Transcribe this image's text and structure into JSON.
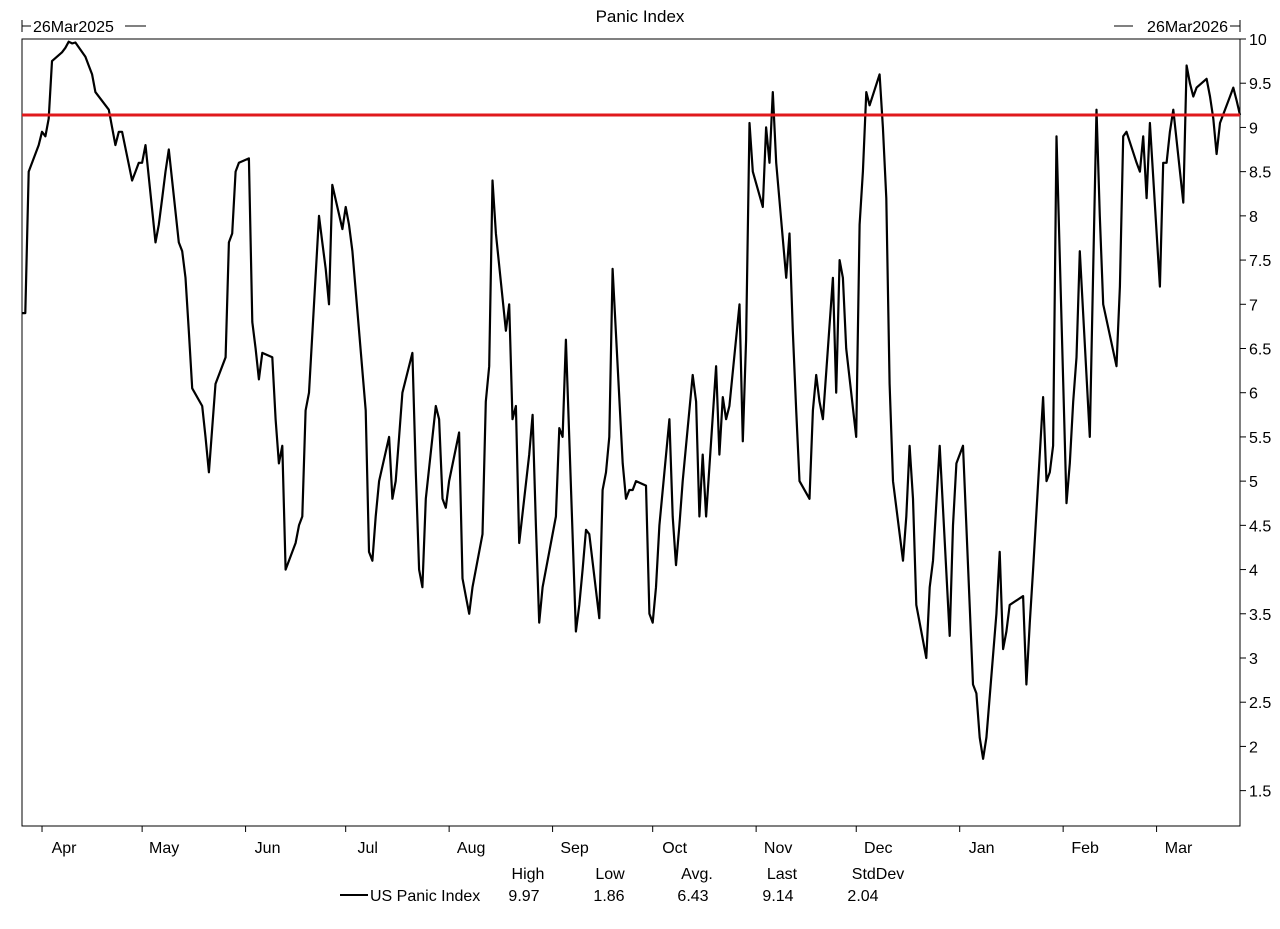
{
  "chart_data": {
    "type": "line",
    "title": "Panic Index",
    "start_label": "26Mar2025",
    "end_label": "26Mar2026",
    "x_range": [
      "2025-03-26",
      "2026-03-26"
    ],
    "ylim": [
      1.1,
      10
    ],
    "y_ticks": [
      10,
      9.5,
      9,
      8.5,
      8,
      7.5,
      7,
      6.5,
      6,
      5.5,
      5,
      4.5,
      4,
      3.5,
      3,
      2.5,
      2,
      1.5
    ],
    "x_ticks": [
      {
        "label": "Apr",
        "date": "2025-04-01"
      },
      {
        "label": "May",
        "date": "2025-05-01"
      },
      {
        "label": "Jun",
        "date": "2025-06-01"
      },
      {
        "label": "Jul",
        "date": "2025-07-01"
      },
      {
        "label": "Aug",
        "date": "2025-08-01"
      },
      {
        "label": "Sep",
        "date": "2025-09-01"
      },
      {
        "label": "Oct",
        "date": "2025-10-01"
      },
      {
        "label": "Nov",
        "date": "2025-11-01"
      },
      {
        "label": "Dec",
        "date": "2025-12-01"
      },
      {
        "label": "Jan",
        "date": "2026-01-01"
      },
      {
        "label": "Feb",
        "date": "2026-02-01"
      },
      {
        "label": "Mar",
        "date": "2026-03-01"
      }
    ],
    "reference_line": {
      "value": 9.14,
      "color": "#e0191c"
    },
    "series": [
      {
        "name": "US Panic Index",
        "color": "#000000",
        "points": [
          [
            "2025-03-26",
            6.9
          ],
          [
            "2025-03-27",
            6.9
          ],
          [
            "2025-03-28",
            8.5
          ],
          [
            "2025-03-31",
            8.8
          ],
          [
            "2025-04-01",
            8.95
          ],
          [
            "2025-04-02",
            8.9
          ],
          [
            "2025-04-03",
            9.1
          ],
          [
            "2025-04-04",
            9.75
          ],
          [
            "2025-04-07",
            9.85
          ],
          [
            "2025-04-08",
            9.9
          ],
          [
            "2025-04-09",
            9.97
          ],
          [
            "2025-04-10",
            9.95
          ],
          [
            "2025-04-11",
            9.96
          ],
          [
            "2025-04-14",
            9.8
          ],
          [
            "2025-04-15",
            9.7
          ],
          [
            "2025-04-16",
            9.6
          ],
          [
            "2025-04-17",
            9.4
          ],
          [
            "2025-04-21",
            9.2
          ],
          [
            "2025-04-22",
            9.0
          ],
          [
            "2025-04-23",
            8.8
          ],
          [
            "2025-04-24",
            8.95
          ],
          [
            "2025-04-25",
            8.95
          ],
          [
            "2025-04-28",
            8.4
          ],
          [
            "2025-04-29",
            8.5
          ],
          [
            "2025-04-30",
            8.6
          ],
          [
            "2025-05-01",
            8.6
          ],
          [
            "2025-05-02",
            8.8
          ],
          [
            "2025-05-05",
            7.7
          ],
          [
            "2025-05-06",
            7.9
          ],
          [
            "2025-05-07",
            8.2
          ],
          [
            "2025-05-08",
            8.5
          ],
          [
            "2025-05-09",
            8.75
          ],
          [
            "2025-05-12",
            7.7
          ],
          [
            "2025-05-13",
            7.6
          ],
          [
            "2025-05-14",
            7.3
          ],
          [
            "2025-05-15",
            6.7
          ],
          [
            "2025-05-16",
            6.05
          ],
          [
            "2025-05-19",
            5.85
          ],
          [
            "2025-05-20",
            5.5
          ],
          [
            "2025-05-21",
            5.1
          ],
          [
            "2025-05-22",
            5.6
          ],
          [
            "2025-05-23",
            6.1
          ],
          [
            "2025-05-26",
            6.4
          ],
          [
            "2025-05-27",
            7.7
          ],
          [
            "2025-05-28",
            7.8
          ],
          [
            "2025-05-29",
            8.5
          ],
          [
            "2025-05-30",
            8.6
          ],
          [
            "2025-06-02",
            8.65
          ],
          [
            "2025-06-03",
            6.8
          ],
          [
            "2025-06-04",
            6.5
          ],
          [
            "2025-06-05",
            6.15
          ],
          [
            "2025-06-06",
            6.45
          ],
          [
            "2025-06-09",
            6.4
          ],
          [
            "2025-06-10",
            5.7
          ],
          [
            "2025-06-11",
            5.2
          ],
          [
            "2025-06-12",
            5.4
          ],
          [
            "2025-06-13",
            4.0
          ],
          [
            "2025-06-16",
            4.3
          ],
          [
            "2025-06-17",
            4.5
          ],
          [
            "2025-06-18",
            4.6
          ],
          [
            "2025-06-19",
            5.8
          ],
          [
            "2025-06-20",
            6.0
          ],
          [
            "2025-06-23",
            8.0
          ],
          [
            "2025-06-24",
            7.7
          ],
          [
            "2025-06-25",
            7.4
          ],
          [
            "2025-06-26",
            7.0
          ],
          [
            "2025-06-27",
            8.35
          ],
          [
            "2025-06-30",
            7.85
          ],
          [
            "2025-07-01",
            8.1
          ],
          [
            "2025-07-02",
            7.9
          ],
          [
            "2025-07-03",
            7.6
          ],
          [
            "2025-07-07",
            5.8
          ],
          [
            "2025-07-08",
            4.2
          ],
          [
            "2025-07-09",
            4.1
          ],
          [
            "2025-07-10",
            4.6
          ],
          [
            "2025-07-11",
            5.0
          ],
          [
            "2025-07-14",
            5.5
          ],
          [
            "2025-07-15",
            4.8
          ],
          [
            "2025-07-16",
            5.0
          ],
          [
            "2025-07-17",
            5.5
          ],
          [
            "2025-07-18",
            6.0
          ],
          [
            "2025-07-21",
            6.45
          ],
          [
            "2025-07-22",
            5.1
          ],
          [
            "2025-07-23",
            4.0
          ],
          [
            "2025-07-24",
            3.8
          ],
          [
            "2025-07-25",
            4.8
          ],
          [
            "2025-07-28",
            5.85
          ],
          [
            "2025-07-29",
            5.7
          ],
          [
            "2025-07-30",
            4.8
          ],
          [
            "2025-07-31",
            4.7
          ],
          [
            "2025-08-01",
            5.0
          ],
          [
            "2025-08-04",
            5.55
          ],
          [
            "2025-08-05",
            3.9
          ],
          [
            "2025-08-06",
            3.7
          ],
          [
            "2025-08-07",
            3.5
          ],
          [
            "2025-08-08",
            3.8
          ],
          [
            "2025-08-11",
            4.4
          ],
          [
            "2025-08-12",
            5.9
          ],
          [
            "2025-08-13",
            6.3
          ],
          [
            "2025-08-14",
            8.4
          ],
          [
            "2025-08-15",
            7.8
          ],
          [
            "2025-08-18",
            6.7
          ],
          [
            "2025-08-19",
            7.0
          ],
          [
            "2025-08-20",
            5.7
          ],
          [
            "2025-08-21",
            5.85
          ],
          [
            "2025-08-22",
            4.3
          ],
          [
            "2025-08-25",
            5.3
          ],
          [
            "2025-08-26",
            5.75
          ],
          [
            "2025-08-27",
            4.5
          ],
          [
            "2025-08-28",
            3.4
          ],
          [
            "2025-08-29",
            3.8
          ],
          [
            "2025-09-02",
            4.6
          ],
          [
            "2025-09-03",
            5.6
          ],
          [
            "2025-09-04",
            5.5
          ],
          [
            "2025-09-05",
            6.6
          ],
          [
            "2025-09-08",
            3.3
          ],
          [
            "2025-09-09",
            3.6
          ],
          [
            "2025-09-10",
            4.0
          ],
          [
            "2025-09-11",
            4.45
          ],
          [
            "2025-09-12",
            4.4
          ],
          [
            "2025-09-15",
            3.45
          ],
          [
            "2025-09-16",
            4.9
          ],
          [
            "2025-09-17",
            5.1
          ],
          [
            "2025-09-18",
            5.5
          ],
          [
            "2025-09-19",
            7.4
          ],
          [
            "2025-09-22",
            5.2
          ],
          [
            "2025-09-23",
            4.8
          ],
          [
            "2025-09-24",
            4.9
          ],
          [
            "2025-09-25",
            4.9
          ],
          [
            "2025-09-26",
            5.0
          ],
          [
            "2025-09-29",
            4.95
          ],
          [
            "2025-09-30",
            3.5
          ],
          [
            "2025-10-01",
            3.4
          ],
          [
            "2025-10-02",
            3.8
          ],
          [
            "2025-10-03",
            4.5
          ],
          [
            "2025-10-06",
            5.7
          ],
          [
            "2025-10-07",
            4.6
          ],
          [
            "2025-10-08",
            4.05
          ],
          [
            "2025-10-09",
            4.5
          ],
          [
            "2025-10-10",
            5.0
          ],
          [
            "2025-10-13",
            6.2
          ],
          [
            "2025-10-14",
            5.9
          ],
          [
            "2025-10-15",
            4.6
          ],
          [
            "2025-10-16",
            5.3
          ],
          [
            "2025-10-17",
            4.6
          ],
          [
            "2025-10-20",
            6.3
          ],
          [
            "2025-10-21",
            5.3
          ],
          [
            "2025-10-22",
            5.95
          ],
          [
            "2025-10-23",
            5.7
          ],
          [
            "2025-10-24",
            5.85
          ],
          [
            "2025-10-27",
            7.0
          ],
          [
            "2025-10-28",
            5.45
          ],
          [
            "2025-10-29",
            6.6
          ],
          [
            "2025-10-30",
            9.05
          ],
          [
            "2025-10-31",
            8.5
          ],
          [
            "2025-11-03",
            8.1
          ],
          [
            "2025-11-04",
            9.0
          ],
          [
            "2025-11-05",
            8.6
          ],
          [
            "2025-11-06",
            9.4
          ],
          [
            "2025-11-07",
            8.6
          ],
          [
            "2025-11-10",
            7.3
          ],
          [
            "2025-11-11",
            7.8
          ],
          [
            "2025-11-12",
            6.7
          ],
          [
            "2025-11-13",
            5.8
          ],
          [
            "2025-11-14",
            5.0
          ],
          [
            "2025-11-17",
            4.8
          ],
          [
            "2025-11-18",
            5.8
          ],
          [
            "2025-11-19",
            6.2
          ],
          [
            "2025-11-20",
            5.9
          ],
          [
            "2025-11-21",
            5.7
          ],
          [
            "2025-11-24",
            7.3
          ],
          [
            "2025-11-25",
            6.0
          ],
          [
            "2025-11-26",
            7.5
          ],
          [
            "2025-11-27",
            7.3
          ],
          [
            "2025-11-28",
            6.5
          ],
          [
            "2025-12-01",
            5.5
          ],
          [
            "2025-12-02",
            7.9
          ],
          [
            "2025-12-03",
            8.5
          ],
          [
            "2025-12-04",
            9.4
          ],
          [
            "2025-12-05",
            9.25
          ],
          [
            "2025-12-08",
            9.6
          ],
          [
            "2025-12-09",
            9.0
          ],
          [
            "2025-12-10",
            8.2
          ],
          [
            "2025-12-11",
            6.1
          ],
          [
            "2025-12-12",
            5.0
          ],
          [
            "2025-12-15",
            4.1
          ],
          [
            "2025-12-16",
            4.6
          ],
          [
            "2025-12-17",
            5.4
          ],
          [
            "2025-12-18",
            4.8
          ],
          [
            "2025-12-19",
            3.6
          ],
          [
            "2025-12-22",
            3.0
          ],
          [
            "2025-12-23",
            3.8
          ],
          [
            "2025-12-24",
            4.1
          ],
          [
            "2025-12-26",
            5.4
          ],
          [
            "2025-12-29",
            3.25
          ],
          [
            "2025-12-30",
            4.5
          ],
          [
            "2025-12-31",
            5.2
          ],
          [
            "2026-01-02",
            5.4
          ],
          [
            "2026-01-05",
            2.7
          ],
          [
            "2026-01-06",
            2.6
          ],
          [
            "2026-01-07",
            2.1
          ],
          [
            "2026-01-08",
            1.86
          ],
          [
            "2026-01-09",
            2.1
          ],
          [
            "2026-01-12",
            3.5
          ],
          [
            "2026-01-13",
            4.2
          ],
          [
            "2026-01-14",
            3.1
          ],
          [
            "2026-01-15",
            3.3
          ],
          [
            "2026-01-16",
            3.6
          ],
          [
            "2026-01-20",
            3.7
          ],
          [
            "2026-01-21",
            2.7
          ],
          [
            "2026-01-22",
            3.4
          ],
          [
            "2026-01-23",
            4.0
          ],
          [
            "2026-01-26",
            5.95
          ],
          [
            "2026-01-27",
            5.0
          ],
          [
            "2026-01-28",
            5.1
          ],
          [
            "2026-01-29",
            5.4
          ],
          [
            "2026-01-30",
            8.9
          ],
          [
            "2026-02-02",
            4.75
          ],
          [
            "2026-02-03",
            5.2
          ],
          [
            "2026-02-04",
            5.9
          ],
          [
            "2026-02-05",
            6.4
          ],
          [
            "2026-02-06",
            7.6
          ],
          [
            "2026-02-09",
            5.5
          ],
          [
            "2026-02-10",
            7.4
          ],
          [
            "2026-02-11",
            9.2
          ],
          [
            "2026-02-12",
            8.0
          ],
          [
            "2026-02-13",
            7.0
          ],
          [
            "2026-02-17",
            6.3
          ],
          [
            "2026-02-18",
            7.2
          ],
          [
            "2026-02-19",
            8.9
          ],
          [
            "2026-02-20",
            8.95
          ],
          [
            "2026-02-23",
            8.6
          ],
          [
            "2026-02-24",
            8.5
          ],
          [
            "2026-02-25",
            8.9
          ],
          [
            "2026-02-26",
            8.2
          ],
          [
            "2026-02-27",
            9.05
          ],
          [
            "2026-03-02",
            7.2
          ],
          [
            "2026-03-03",
            8.6
          ],
          [
            "2026-03-04",
            8.6
          ],
          [
            "2026-03-05",
            8.95
          ],
          [
            "2026-03-06",
            9.2
          ],
          [
            "2026-03-09",
            8.15
          ],
          [
            "2026-03-10",
            9.7
          ],
          [
            "2026-03-11",
            9.5
          ],
          [
            "2026-03-12",
            9.35
          ],
          [
            "2026-03-13",
            9.45
          ],
          [
            "2026-03-16",
            9.55
          ],
          [
            "2026-03-17",
            9.35
          ],
          [
            "2026-03-18",
            9.1
          ],
          [
            "2026-03-19",
            8.7
          ],
          [
            "2026-03-20",
            9.05
          ],
          [
            "2026-03-23",
            9.35
          ],
          [
            "2026-03-24",
            9.45
          ],
          [
            "2026-03-25",
            9.3
          ],
          [
            "2026-03-26",
            9.14
          ]
        ]
      }
    ],
    "legend": {
      "placement": "bottom",
      "headers": [
        "High",
        "Low",
        "Avg.",
        "Last",
        "StdDev"
      ],
      "rows": [
        {
          "name": "US Panic Index",
          "values": [
            "9.97",
            "1.86",
            "6.43",
            "9.14",
            "2.04"
          ]
        }
      ]
    }
  }
}
